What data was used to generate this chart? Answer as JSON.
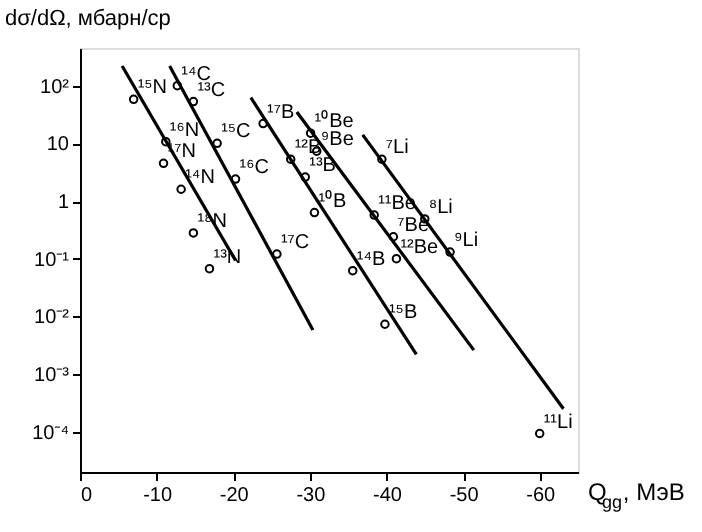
{
  "chart_data": {
    "type": "scatter",
    "xlabel": "Q$_{gg}$, МэВ",
    "ylabel": "dσ/dΩ, мбарн/ср",
    "log": "y",
    "grid": false,
    "xlim": [
      0,
      -65
    ],
    "xticks": [
      0,
      -10,
      -20,
      -30,
      -40,
      -50,
      -60
    ],
    "ylim": [
      2e-05,
      450
    ],
    "yticks": [
      {
        "value": 100,
        "label": "10²"
      },
      10,
      1,
      {
        "value": 0.1,
        "label": "10⁻¹"
      },
      {
        "value": 0.01,
        "label": "10⁻²"
      },
      {
        "value": 0.001,
        "label": "10⁻³"
      },
      {
        "value": 0.0001,
        "label": "10⁻⁴"
      }
    ],
    "series": [
      {
        "marker": "circle",
        "color": "#000000",
        "x": [
          -7.0,
          -11.2,
          -10.9,
          -13.2,
          -14.8,
          -16.9,
          -12.7,
          -14.8,
          -17.9,
          -20.3,
          -25.7,
          -23.9,
          -27.5,
          -29.4,
          -30.6,
          -35.6,
          -39.8,
          -30.1,
          -30.9,
          -39.4,
          -38.4,
          -45.0,
          -40.9,
          -48.3,
          -41.3,
          -60.0
        ],
        "values": [
          58,
          10.7,
          4.5,
          1.6,
          0.28,
          0.067,
          100,
          53,
          10,
          2.4,
          0.12,
          22,
          5.3,
          2.6,
          0.63,
          0.062,
          0.0073,
          15,
          7.3,
          5.3,
          0.57,
          0.49,
          0.24,
          0.13,
          0.1,
          9.3e-05
        ]
      },
      {
        "type": "line",
        "color": "#000000",
        "line_style": "solid",
        "x": [
          -5.5,
          -20.3
        ],
        "values": [
          219,
          0.093
        ]
      },
      {
        "type": "line",
        "color": "#000000",
        "line_style": "solid",
        "x": [
          -11.7,
          -30.4
        ],
        "values": [
          219,
          0.0058
        ]
      },
      {
        "type": "line",
        "color": "#000000",
        "line_style": "solid",
        "x": [
          -22.3,
          -43.9
        ],
        "values": [
          62,
          0.0022
        ]
      },
      {
        "type": "line",
        "color": "#000000",
        "line_style": "solid",
        "x": [
          -28.3,
          -51.4
        ],
        "values": [
          35,
          0.0026
        ]
      },
      {
        "type": "line",
        "color": "#000000",
        "line_style": "solid",
        "x": [
          -36.9,
          -63.1
        ],
        "values": [
          14,
          0.00025
        ]
      }
    ],
    "annotations": [
      {
        "text": "¹⁵N",
        "x": -7.0,
        "y": 58
      },
      {
        "text": "¹⁶N",
        "x": -11.2,
        "y": 10.7
      },
      {
        "text": "¹⁷N",
        "x": -10.9,
        "y": 4.5
      },
      {
        "text": "¹⁴N",
        "x": -13.2,
        "y": 1.6
      },
      {
        "text": "¹⁸N",
        "x": -14.8,
        "y": 0.28
      },
      {
        "text": "¹³N",
        "x": -16.9,
        "y": 0.067
      },
      {
        "text": "¹⁴C",
        "x": -12.7,
        "y": 100
      },
      {
        "text": "¹³C",
        "x": -14.8,
        "y": 53
      },
      {
        "text": "¹⁵C",
        "x": -17.9,
        "y": 10
      },
      {
        "text": "¹⁶C",
        "x": -20.3,
        "y": 2.4
      },
      {
        "text": "¹⁷C",
        "x": -25.7,
        "y": 0.12
      },
      {
        "text": "¹⁷B",
        "x": -23.9,
        "y": 22
      },
      {
        "text": "¹²B",
        "x": -27.5,
        "y": 5.3
      },
      {
        "text": "¹³B",
        "x": -29.4,
        "y": 2.6
      },
      {
        "text": "¹⁰B",
        "x": -30.6,
        "y": 0.63
      },
      {
        "text": "¹⁴B",
        "x": -35.6,
        "y": 0.062
      },
      {
        "text": "¹⁵B",
        "x": -39.8,
        "y": 0.0073
      },
      {
        "text": "¹⁰Be",
        "x": -30.1,
        "y": 15
      },
      {
        "text": "⁹Be",
        "x": -30.9,
        "y": 7.3
      },
      {
        "text": "⁷Li",
        "x": -39.4,
        "y": 5.3
      },
      {
        "text": "¹¹Be",
        "x": -38.4,
        "y": 0.57
      },
      {
        "text": "⁸Li",
        "x": -45.0,
        "y": 0.49
      },
      {
        "text": "⁷Be",
        "x": -40.9,
        "y": 0.24
      },
      {
        "text": "⁹Li",
        "x": -48.3,
        "y": 0.13
      },
      {
        "text": "¹²Be",
        "x": -41.3,
        "y": 0.1
      },
      {
        "text": "¹¹Li",
        "x": -60.0,
        "y": 9.3e-05
      }
    ]
  }
}
